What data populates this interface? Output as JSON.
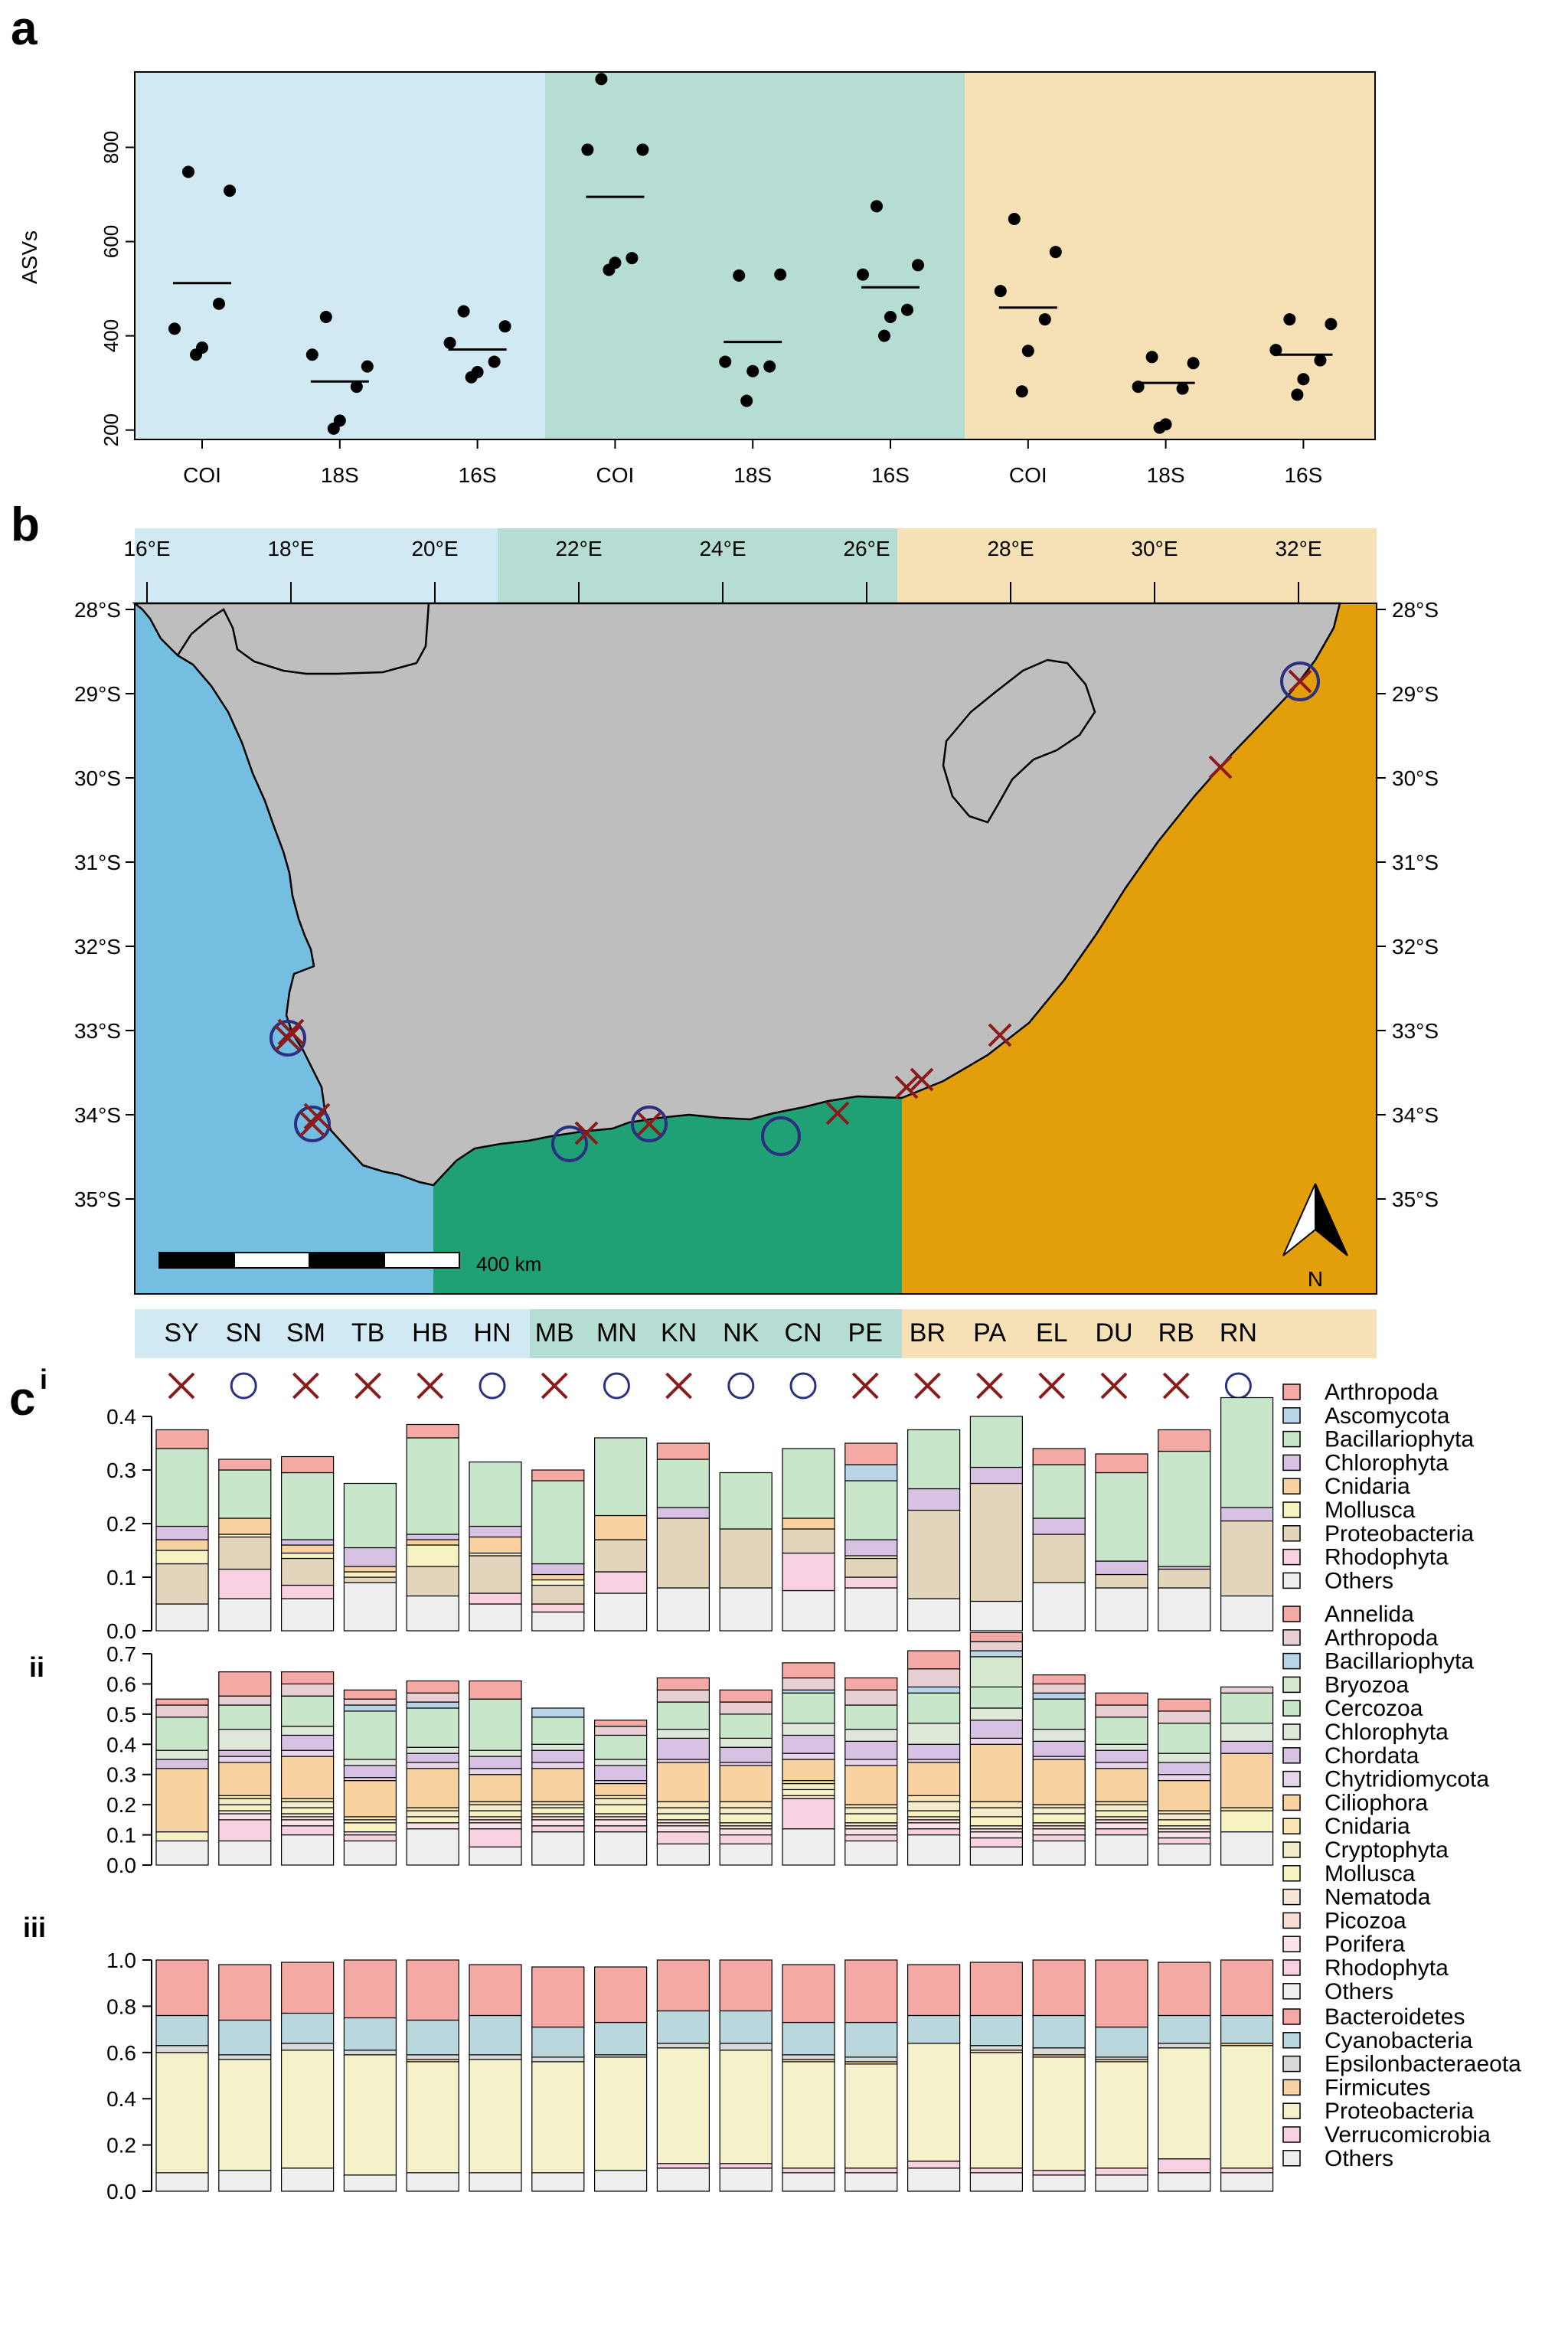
{
  "panel_labels": {
    "a": "a",
    "b": "b",
    "c": "c",
    "c_sup": "i",
    "ci": "i",
    "cii": "ii",
    "ciii": "iii"
  },
  "colors": {
    "west": "#d1e9f3",
    "south": "#b5ddd3",
    "east": "#f6e0b5",
    "sea_west": "#74bfe1",
    "sea_south": "#1fa175",
    "sea_east": "#e39f0a",
    "land": "#bebebe",
    "cross": "#8b1a1a",
    "circle": "#2b3080"
  },
  "chart_data": [
    {
      "type": "scatter",
      "panel": "a",
      "ylabel": "ASVs",
      "ylim": [
        180,
        960
      ],
      "yticks": [
        200,
        400,
        600,
        800
      ],
      "grid": false,
      "categories": [
        "COI",
        "18S",
        "16S",
        "COI",
        "18S",
        "16S",
        "COI",
        "18S",
        "16S"
      ],
      "region_of_category": [
        "west",
        "west",
        "west",
        "south",
        "south",
        "south",
        "east",
        "east",
        "east"
      ],
      "points": [
        [
          748,
          708,
          415,
          468,
          375,
          360
        ],
        [
          440,
          335,
          360,
          292,
          220,
          203
        ],
        [
          452,
          420,
          385,
          345,
          323,
          312
        ],
        [
          945,
          795,
          795,
          565,
          555,
          540
        ],
        [
          528,
          530,
          345,
          335,
          325,
          262
        ],
        [
          675,
          550,
          530,
          455,
          440,
          400
        ],
        [
          648,
          578,
          495,
          435,
          368,
          282
        ],
        [
          355,
          342,
          292,
          288,
          212,
          205
        ],
        [
          435,
          425,
          370,
          348,
          308,
          275
        ]
      ],
      "means": [
        512,
        303,
        371,
        695,
        387,
        503,
        460,
        300,
        360
      ]
    },
    {
      "type": "bar",
      "panel": "c-i",
      "ylim": [
        0,
        0.4
      ],
      "yticks": [
        "0.0",
        "0.1",
        "0.2",
        "0.3",
        "0.4"
      ],
      "categories": [
        "SY",
        "SN",
        "SM",
        "TB",
        "HB",
        "HN",
        "MB",
        "MN",
        "KN",
        "NK",
        "CN",
        "PE",
        "BR",
        "PA",
        "EL",
        "DU",
        "RB",
        "RN"
      ],
      "legend": [
        "Arthropoda",
        "Ascomycota",
        "Bacillariophyta",
        "Chlorophyta",
        "Cnidaria",
        "Mollusca",
        "Proteobacteria",
        "Rhodophyta",
        "Others"
      ],
      "colors": [
        "#f4a9a4",
        "#b9d4e7",
        "#c8e6c9",
        "#d7c2e3",
        "#f8d3a1",
        "#f6f2c2",
        "#e2d5bc",
        "#f7d0e1",
        "#efefef"
      ],
      "series": [
        {
          "name": "Others",
          "values": [
            0.05,
            0.06,
            0.06,
            0.09,
            0.065,
            0.05,
            0.035,
            0.07,
            0.08,
            0.08,
            0.075,
            0.08,
            0.06,
            0.055,
            0.09,
            0.08,
            0.08,
            0.065
          ]
        },
        {
          "name": "Rhodophyta",
          "values": [
            0,
            0.055,
            0.025,
            0,
            0,
            0.02,
            0.015,
            0.04,
            0,
            0,
            0.07,
            0.02,
            0,
            0,
            0,
            0,
            0,
            0
          ]
        },
        {
          "name": "Proteobacteria",
          "values": [
            0.075,
            0.06,
            0.05,
            0.01,
            0.055,
            0.07,
            0.035,
            0.06,
            0.13,
            0.11,
            0.045,
            0.035,
            0.165,
            0.22,
            0.09,
            0.025,
            0.035,
            0.14
          ]
        },
        {
          "name": "Mollusca",
          "values": [
            0.025,
            0.005,
            0.01,
            0.01,
            0.04,
            0.005,
            0.01,
            0,
            0,
            0,
            0,
            0.005,
            0,
            0,
            0,
            0,
            0,
            0
          ]
        },
        {
          "name": "Cnidaria",
          "values": [
            0.02,
            0.03,
            0.015,
            0.01,
            0.01,
            0.03,
            0.01,
            0.045,
            0,
            0,
            0.02,
            0,
            0,
            0,
            0,
            0,
            0,
            0
          ]
        },
        {
          "name": "Chlorophyta",
          "values": [
            0.025,
            0,
            0.01,
            0.035,
            0.01,
            0.02,
            0.02,
            0,
            0.02,
            0,
            0,
            0.03,
            0.04,
            0.03,
            0.03,
            0.025,
            0.005,
            0.025
          ]
        },
        {
          "name": "Bacillariophyta",
          "values": [
            0.145,
            0.09,
            0.125,
            0.12,
            0.18,
            0.12,
            0.155,
            0.145,
            0.09,
            0.105,
            0.13,
            0.11,
            0.11,
            0.095,
            0.1,
            0.165,
            0.215,
            0.205
          ]
        },
        {
          "name": "Ascomycota",
          "values": [
            0,
            0,
            0,
            0,
            0,
            0,
            0,
            0,
            0,
            0,
            0,
            0.03,
            0,
            0,
            0,
            0,
            0,
            0
          ]
        },
        {
          "name": "Arthropoda",
          "values": [
            0.035,
            0.02,
            0.03,
            0,
            0.025,
            0,
            0.02,
            0,
            0.03,
            0,
            0,
            0.04,
            0,
            0,
            0.03,
            0.035,
            0.04,
            0
          ]
        }
      ]
    },
    {
      "type": "bar",
      "panel": "c-ii",
      "ylim": [
        0,
        0.7
      ],
      "yticks": [
        "0.0",
        "0.1",
        "0.2",
        "0.3",
        "0.4",
        "0.5",
        "0.6",
        "0.7"
      ],
      "categories": [
        "SY",
        "SN",
        "SM",
        "TB",
        "HB",
        "HN",
        "MB",
        "MN",
        "KN",
        "NK",
        "CN",
        "PE",
        "BR",
        "PA",
        "EL",
        "DU",
        "RB",
        "RN"
      ],
      "legend": [
        "Annelida",
        "Arthropoda",
        "Bacillariophyta",
        "Bryozoa",
        "Cercozoa",
        "Chlorophyta",
        "Chordata",
        "Chytridiomycota",
        "Ciliophora",
        "Cnidaria",
        "Cryptophyta",
        "Mollusca",
        "Nematoda",
        "Picozoa",
        "Porifera",
        "Rhodophyta",
        "Others"
      ],
      "colors": [
        "#f4a9a4",
        "#e7cfd3",
        "#b9d4e7",
        "#d5e7cc",
        "#c8e6c9",
        "#dde8d8",
        "#d7c2e3",
        "#e6d6ec",
        "#f8d3a1",
        "#fbe5b4",
        "#f3eccb",
        "#f6f2c2",
        "#f5e6d6",
        "#f8ddd4",
        "#f9e2ea",
        "#f7d0e1",
        "#efefef"
      ],
      "series": [
        {
          "name": "Others",
          "values": [
            0.08,
            0.08,
            0.1,
            0.08,
            0.12,
            0.06,
            0.11,
            0.11,
            0.07,
            0.07,
            0.12,
            0.08,
            0.1,
            0.06,
            0.08,
            0.1,
            0.07,
            0.11
          ]
        },
        {
          "name": "Rhodophyta",
          "values": [
            0,
            0.07,
            0.03,
            0.02,
            0,
            0.06,
            0.02,
            0.02,
            0.04,
            0.03,
            0.1,
            0.02,
            0.02,
            0.03,
            0.02,
            0.02,
            0.02,
            0
          ]
        },
        {
          "name": "Porifera",
          "values": [
            0,
            0.02,
            0.02,
            0.01,
            0.02,
            0.02,
            0.02,
            0.02,
            0.02,
            0.02,
            0,
            0.02,
            0.02,
            0.02,
            0.02,
            0.02,
            0.02,
            0
          ]
        },
        {
          "name": "Picozoa",
          "values": [
            0,
            0,
            0.01,
            0,
            0,
            0.01,
            0.01,
            0.01,
            0.01,
            0.01,
            0,
            0.01,
            0.01,
            0.01,
            0.01,
            0.01,
            0.01,
            0
          ]
        },
        {
          "name": "Nematoda",
          "values": [
            0,
            0.01,
            0.01,
            0,
            0,
            0.01,
            0.01,
            0.01,
            0.01,
            0.01,
            0.01,
            0.01,
            0.01,
            0.01,
            0.01,
            0.01,
            0.01,
            0
          ]
        },
        {
          "name": "Mollusca",
          "values": [
            0.03,
            0.02,
            0.02,
            0.03,
            0.02,
            0.02,
            0.02,
            0.03,
            0.02,
            0.03,
            0.02,
            0.03,
            0.02,
            0.03,
            0.03,
            0.02,
            0.02,
            0.07
          ]
        },
        {
          "name": "Cryptophyta",
          "values": [
            0,
            0.02,
            0.02,
            0.01,
            0.02,
            0.02,
            0.01,
            0.02,
            0.02,
            0.02,
            0.02,
            0.02,
            0.03,
            0.03,
            0.02,
            0.02,
            0.02,
            0
          ]
        },
        {
          "name": "Cnidaria",
          "values": [
            0,
            0.01,
            0.01,
            0.01,
            0.01,
            0.01,
            0.01,
            0.01,
            0.02,
            0.02,
            0.01,
            0.01,
            0.02,
            0.02,
            0.01,
            0.01,
            0.01,
            0.01
          ]
        },
        {
          "name": "Ciliophora",
          "values": [
            0.21,
            0.11,
            0.14,
            0.12,
            0.13,
            0.09,
            0.11,
            0.04,
            0.13,
            0.12,
            0.07,
            0.13,
            0.11,
            0.19,
            0.15,
            0.11,
            0.1,
            0.18
          ]
        },
        {
          "name": "Chytridiomycota",
          "values": [
            0,
            0.02,
            0.02,
            0.01,
            0.02,
            0.02,
            0.02,
            0.01,
            0.01,
            0.01,
            0.02,
            0.02,
            0.01,
            0.02,
            0.01,
            0.02,
            0.02,
            0
          ]
        },
        {
          "name": "Chordata",
          "values": [
            0.03,
            0.02,
            0.05,
            0.04,
            0.03,
            0.04,
            0.04,
            0.05,
            0.07,
            0.05,
            0.06,
            0.06,
            0.05,
            0.06,
            0.05,
            0.04,
            0.04,
            0.04
          ]
        },
        {
          "name": "Chlorophyta",
          "values": [
            0.03,
            0.07,
            0.03,
            0.02,
            0.02,
            0.02,
            0.02,
            0.02,
            0.03,
            0.03,
            0.04,
            0.04,
            0.07,
            0.04,
            0.04,
            0.02,
            0.03,
            0.06
          ]
        },
        {
          "name": "Cercozoa",
          "values": [
            0.11,
            0.08,
            0.1,
            0.16,
            0.13,
            0.17,
            0.09,
            0.08,
            0.09,
            0.08,
            0.1,
            0.08,
            0.1,
            0.07,
            0.1,
            0.09,
            0.1,
            0.1
          ]
        },
        {
          "name": "Bryozoa",
          "values": [
            0,
            0,
            0,
            0,
            0,
            0,
            0,
            0,
            0,
            0,
            0,
            0,
            0,
            0.1,
            0,
            0,
            0,
            0
          ]
        },
        {
          "name": "Bacillariophyta",
          "values": [
            0,
            0,
            0,
            0.02,
            0.02,
            0,
            0.03,
            0,
            0,
            0,
            0.01,
            0,
            0.02,
            0.02,
            0.02,
            0,
            0,
            0
          ]
        },
        {
          "name": "Arthropoda",
          "values": [
            0.04,
            0.03,
            0.04,
            0.02,
            0.03,
            0,
            0,
            0.03,
            0.04,
            0.04,
            0.04,
            0.05,
            0.06,
            0.03,
            0.03,
            0.04,
            0.04,
            0.02
          ]
        },
        {
          "name": "Annelida",
          "values": [
            0.02,
            0.08,
            0.04,
            0.03,
            0.04,
            0.06,
            0,
            0.02,
            0.04,
            0.04,
            0.05,
            0.04,
            0.06,
            0.03,
            0.03,
            0.04,
            0.04,
            0
          ]
        }
      ]
    },
    {
      "type": "bar",
      "panel": "c-iii",
      "ylim": [
        0,
        1.0
      ],
      "yticks": [
        "0.0",
        "0.2",
        "0.4",
        "0.6",
        "0.8",
        "1.0"
      ],
      "categories": [
        "SY",
        "SN",
        "SM",
        "TB",
        "HB",
        "HN",
        "MB",
        "MN",
        "KN",
        "NK",
        "CN",
        "PE",
        "BR",
        "PA",
        "EL",
        "DU",
        "RB",
        "RN"
      ],
      "legend": [
        "Bacteroidetes",
        "Cyanobacteria",
        "Epsilonbacteraeota",
        "Firmicutes",
        "Proteobacteria",
        "Verrucomicrobia",
        "Others"
      ],
      "colors": [
        "#f4a9a4",
        "#b9d7dc",
        "#d9d9d9",
        "#f8d3a1",
        "#f4f1cb",
        "#f7d0e1",
        "#efefef"
      ],
      "series": [
        {
          "name": "Others",
          "values": [
            0.08,
            0.09,
            0.1,
            0.07,
            0.08,
            0.08,
            0.08,
            0.09,
            0.1,
            0.1,
            0.08,
            0.08,
            0.1,
            0.08,
            0.07,
            0.07,
            0.08,
            0.08
          ]
        },
        {
          "name": "Verrucomicrobia",
          "values": [
            0,
            0,
            0,
            0,
            0,
            0,
            0,
            0,
            0.02,
            0.02,
            0.02,
            0.02,
            0.03,
            0.02,
            0.02,
            0.03,
            0.06,
            0.02
          ]
        },
        {
          "name": "Proteobacteria",
          "values": [
            0.52,
            0.48,
            0.51,
            0.52,
            0.48,
            0.49,
            0.48,
            0.49,
            0.5,
            0.49,
            0.46,
            0.45,
            0.51,
            0.5,
            0.49,
            0.46,
            0.48,
            0.53
          ]
        },
        {
          "name": "Firmicutes",
          "values": [
            0,
            0,
            0,
            0,
            0.01,
            0,
            0,
            0,
            0,
            0,
            0.01,
            0.01,
            0,
            0.01,
            0.01,
            0.01,
            0,
            0.01
          ]
        },
        {
          "name": "Epsilonbacteraeota",
          "values": [
            0.03,
            0.02,
            0.03,
            0.02,
            0.02,
            0.02,
            0.02,
            0.01,
            0.02,
            0.03,
            0.02,
            0.02,
            0,
            0.02,
            0.03,
            0.01,
            0.02,
            0
          ]
        },
        {
          "name": "Cyanobacteria",
          "values": [
            0.13,
            0.15,
            0.13,
            0.14,
            0.15,
            0.17,
            0.13,
            0.14,
            0.14,
            0.14,
            0.14,
            0.15,
            0.12,
            0.13,
            0.14,
            0.13,
            0.12,
            0.12
          ]
        },
        {
          "name": "Bacteroidetes",
          "values": [
            0.24,
            0.24,
            0.22,
            0.25,
            0.26,
            0.22,
            0.26,
            0.24,
            0.22,
            0.22,
            0.25,
            0.27,
            0.22,
            0.23,
            0.24,
            0.29,
            0.23,
            0.24
          ]
        }
      ]
    }
  ],
  "map": {
    "lon_ticks": [
      "16°E",
      "18°E",
      "20°E",
      "22°E",
      "24°E",
      "26°E",
      "28°E",
      "30°E",
      "32°E"
    ],
    "lat_ticks": [
      "28°S",
      "29°S",
      "30°S",
      "31°S",
      "32°S",
      "33°S",
      "34°S",
      "35°S"
    ],
    "scale_label": "400 km",
    "north_label": "N",
    "sites": [
      "SY",
      "SN",
      "SM",
      "TB",
      "HB",
      "HN",
      "MB",
      "MN",
      "KN",
      "NK",
      "CN",
      "PE",
      "BR",
      "PA",
      "EL",
      "DU",
      "RB",
      "RN"
    ],
    "site_region": [
      "west",
      "west",
      "west",
      "west",
      "west",
      "west",
      "south",
      "south",
      "south",
      "south",
      "south",
      "south",
      "east",
      "east",
      "east",
      "east",
      "east",
      "east"
    ],
    "site_type": [
      "cross",
      "circle",
      "cross",
      "cross",
      "cross",
      "circle",
      "cross",
      "circle",
      "cross",
      "circle",
      "circle",
      "cross",
      "cross",
      "cross",
      "cross",
      "cross",
      "cross",
      "circle"
    ]
  }
}
